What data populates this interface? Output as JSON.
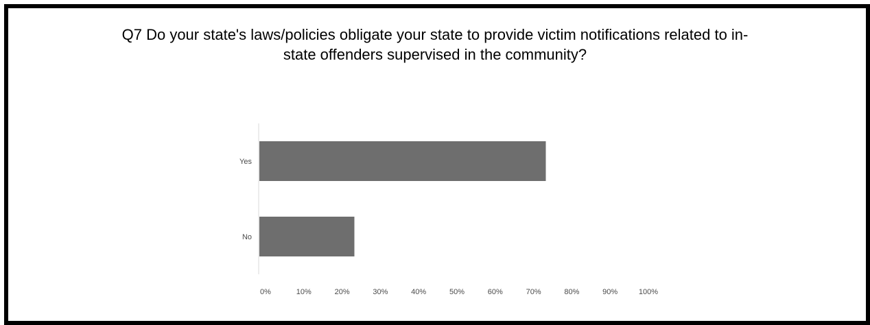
{
  "chart_data": {
    "type": "bar",
    "orientation": "horizontal",
    "title_lines": [
      "Q7 Do your state's laws/policies obligate your state to provide victim notifications related to in-",
      "state offenders supervised in the community?"
    ],
    "categories": [
      "Yes",
      "No"
    ],
    "values": [
      75,
      25
    ],
    "unit": "%",
    "xlim": [
      0,
      100
    ],
    "x_ticks": [
      "0%",
      "10%",
      "20%",
      "30%",
      "40%",
      "50%",
      "60%",
      "70%",
      "80%",
      "90%",
      "100%"
    ],
    "grid": false,
    "legend": "none",
    "colors": {
      "bar": "#6e6e6e",
      "axis": "#d8d8d8",
      "frame": "#000000"
    }
  }
}
